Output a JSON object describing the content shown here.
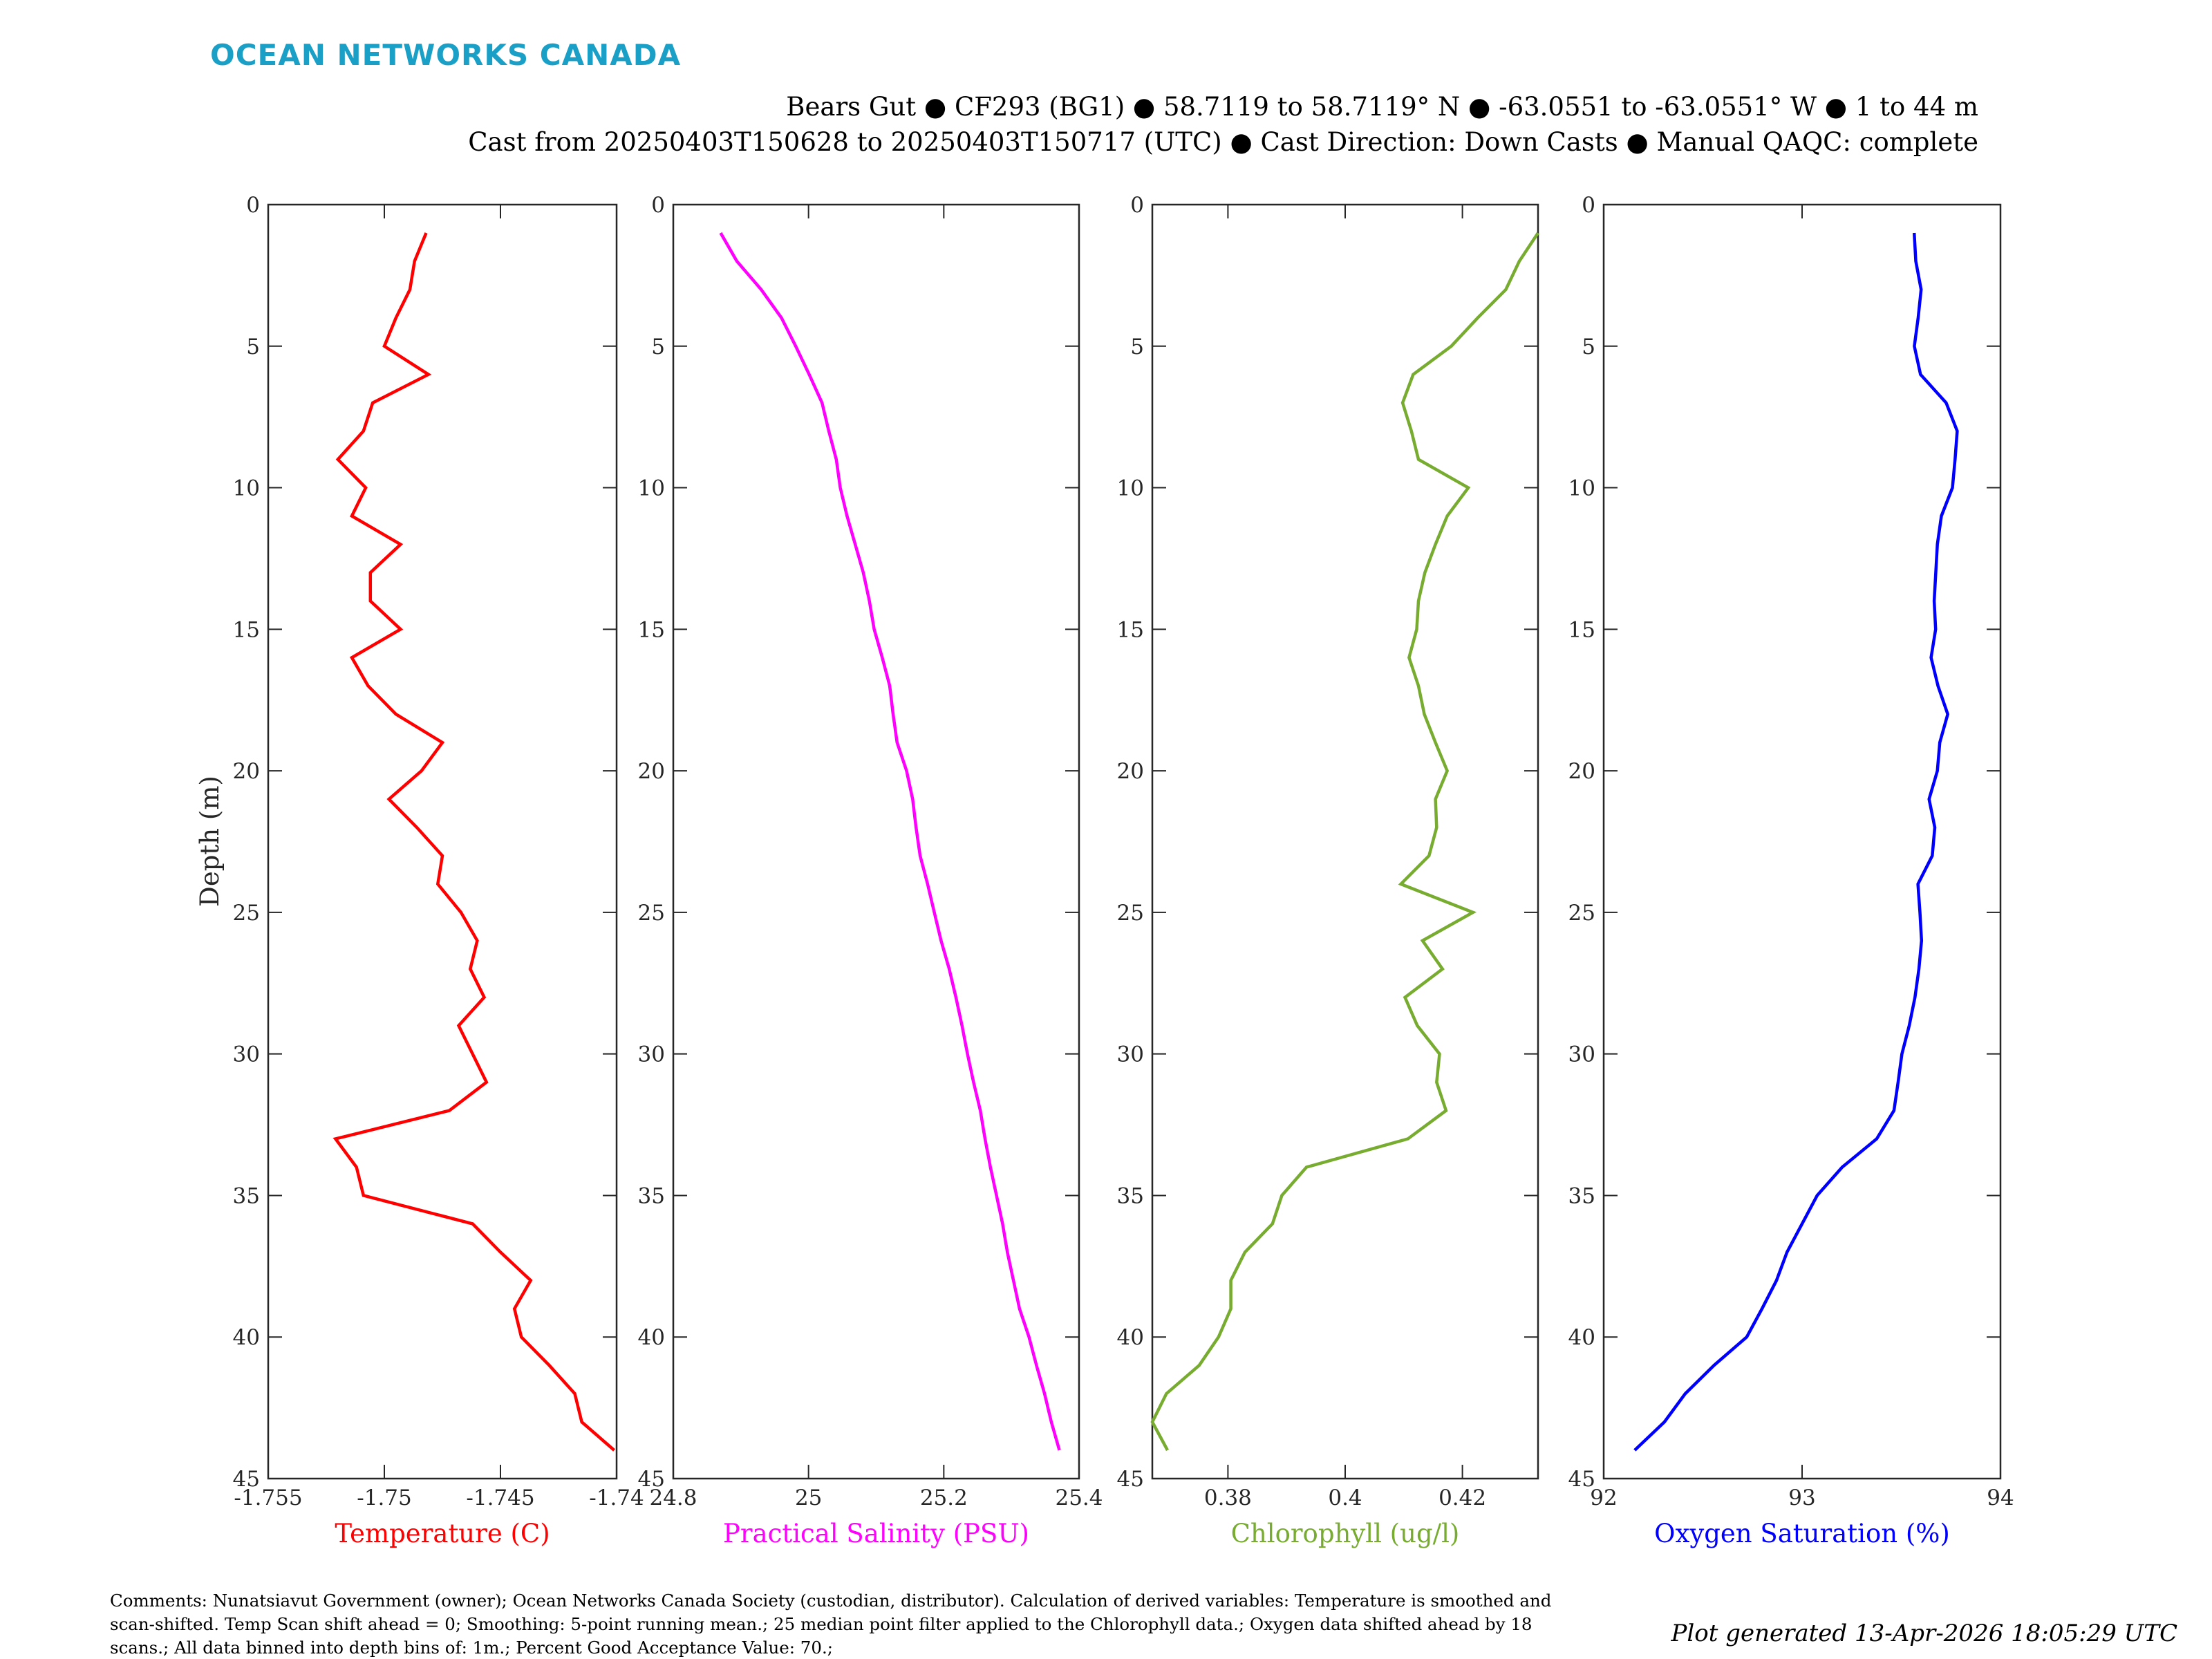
{
  "logo": {
    "text": "OCEAN NETWORKS CANADA",
    "color": "#1a9fc6"
  },
  "header": {
    "line1": "Bears Gut ● CF293 (BG1) ● 58.7119 to 58.7119° N ● -63.0551 to -63.0551° W ● 1 to 44 m",
    "line2": "Cast from 20250403T150628 to 20250403T150717 (UTC) ● Cast Direction: Down Casts ● Manual QAQC: complete"
  },
  "footer": {
    "comments": [
      "Comments: Nunatsiavut Government (owner); Ocean Networks Canada Society (custodian, distributor). Calculation of derived variables: Temperature is smoothed and",
      "scan-shifted. Temp Scan shift ahead = 0; Smoothing: 5-point running mean.; 25 median point filter applied to the Chlorophyll data.; Oxygen data shifted ahead by 18",
      "scans.; All data binned into depth bins of: 1m.; Percent Good Acceptance Value: 70.;"
    ],
    "generated": "Plot generated 13-Apr-2026 18:05:29 UTC"
  },
  "depth_axis": {
    "label": "Depth (m)",
    "ylim": [
      0,
      45
    ],
    "reversed": true,
    "ticks": [
      "0",
      "5",
      "10",
      "15",
      "20",
      "25",
      "30",
      "35",
      "40",
      "45"
    ],
    "tick_values": [
      0,
      5,
      10,
      15,
      20,
      25,
      30,
      35,
      40,
      45
    ]
  },
  "chart_data": [
    {
      "type": "line",
      "xlabel": "Temperature (C)",
      "ylabel": "Depth (m)",
      "color": "#ff0000",
      "xlim": [
        -1.755,
        -1.74
      ],
      "xticks": [
        -1.755,
        -1.75,
        -1.745,
        -1.74
      ],
      "xtick_labels": [
        "-1.755",
        "-1.75",
        "-1.745",
        "-1.74"
      ],
      "grid": false,
      "y": [
        1,
        2,
        3,
        4,
        5,
        6,
        7,
        8,
        9,
        10,
        11,
        12,
        13,
        14,
        15,
        16,
        17,
        18,
        19,
        20,
        21,
        22,
        23,
        24,
        25,
        26,
        27,
        28,
        29,
        30,
        31,
        32,
        33,
        34,
        35,
        36,
        37,
        38,
        39,
        40,
        41,
        42,
        43,
        44
      ],
      "x": [
        -1.7482,
        -1.7487,
        -1.7489,
        -1.7495,
        -1.75,
        -1.7481,
        -1.7505,
        -1.7509,
        -1.752,
        -1.7508,
        -1.7514,
        -1.7493,
        -1.7506,
        -1.7506,
        -1.7493,
        -1.7514,
        -1.7507,
        -1.7495,
        -1.7475,
        -1.7484,
        -1.7498,
        -1.7486,
        -1.7475,
        -1.7477,
        -1.7467,
        -1.746,
        -1.7463,
        -1.7457,
        -1.7468,
        -1.7462,
        -1.7456,
        -1.7472,
        -1.7521,
        -1.7512,
        -1.7509,
        -1.7462,
        -1.745,
        -1.7437,
        -1.7444,
        -1.7441,
        -1.7429,
        -1.7418,
        -1.7415,
        -1.7401
      ]
    },
    {
      "type": "line",
      "xlabel": "Practical Salinity (PSU)",
      "ylabel": "Depth (m)",
      "color": "#ff00ff",
      "xlim": [
        24.8,
        25.4
      ],
      "xticks": [
        24.8,
        25,
        25.2,
        25.4
      ],
      "xtick_labels": [
        "24.8",
        "25",
        "25.2",
        "25.4"
      ],
      "grid": false,
      "y": [
        1,
        2,
        3,
        4,
        5,
        6,
        7,
        8,
        9,
        10,
        11,
        12,
        13,
        14,
        15,
        16,
        17,
        18,
        19,
        20,
        21,
        22,
        23,
        24,
        25,
        26,
        27,
        28,
        29,
        30,
        31,
        32,
        33,
        34,
        35,
        36,
        37,
        38,
        39,
        40,
        41,
        42,
        43,
        44
      ],
      "x": [
        24.87,
        24.894,
        24.93,
        24.96,
        24.981,
        25.001,
        25.02,
        25.03,
        25.041,
        25.047,
        25.057,
        25.069,
        25.081,
        25.09,
        25.097,
        25.109,
        25.12,
        25.125,
        25.131,
        25.145,
        25.154,
        25.159,
        25.165,
        25.176,
        25.186,
        25.196,
        25.208,
        25.218,
        25.227,
        25.235,
        25.244,
        25.254,
        25.261,
        25.269,
        25.278,
        25.287,
        25.294,
        25.303,
        25.312,
        25.326,
        25.337,
        25.349,
        25.359,
        25.371
      ]
    },
    {
      "type": "line",
      "xlabel": "Chlorophyll (ug/l)",
      "ylabel": "Depth (m)",
      "color": "#77ac30",
      "xlim": [
        0.3671,
        0.4329
      ],
      "xticks": [
        0.38,
        0.4,
        0.42
      ],
      "xtick_labels": [
        "0.38",
        "0.4",
        "0.42"
      ],
      "grid": false,
      "y": [
        1,
        2,
        3,
        4,
        5,
        6,
        7,
        8,
        9,
        10,
        11,
        12,
        13,
        14,
        15,
        16,
        17,
        18,
        19,
        20,
        21,
        22,
        23,
        24,
        25,
        26,
        27,
        28,
        29,
        30,
        31,
        32,
        33,
        34,
        35,
        36,
        37,
        38,
        39,
        40,
        41,
        42,
        43,
        44
      ],
      "x": [
        0.4329,
        0.4297,
        0.4274,
        0.4226,
        0.4181,
        0.4116,
        0.4098,
        0.4113,
        0.4125,
        0.421,
        0.4174,
        0.4154,
        0.4136,
        0.4125,
        0.4122,
        0.4109,
        0.4125,
        0.4135,
        0.4154,
        0.4174,
        0.4154,
        0.4156,
        0.4143,
        0.4095,
        0.4218,
        0.4132,
        0.4166,
        0.4102,
        0.4123,
        0.4161,
        0.4156,
        0.4172,
        0.4107,
        0.3934,
        0.3892,
        0.3876,
        0.3829,
        0.3805,
        0.3805,
        0.3784,
        0.3751,
        0.3695,
        0.3671,
        0.3697
      ]
    },
    {
      "type": "line",
      "xlabel": "Oxygen Saturation (%)",
      "ylabel": "Depth (m)",
      "color": "#0000ff",
      "xlim": [
        92,
        94
      ],
      "xticks": [
        92,
        93,
        94
      ],
      "xtick_labels": [
        "92",
        "93",
        "94"
      ],
      "grid": false,
      "y": [
        1,
        2,
        3,
        4,
        5,
        6,
        7,
        8,
        9,
        10,
        11,
        12,
        13,
        14,
        15,
        16,
        17,
        18,
        19,
        20,
        21,
        22,
        23,
        24,
        25,
        26,
        27,
        28,
        29,
        30,
        31,
        32,
        33,
        34,
        35,
        36,
        37,
        38,
        39,
        40,
        41,
        42,
        43,
        44
      ],
      "x": [
        93.565,
        93.573,
        93.6,
        93.585,
        93.566,
        93.597,
        93.726,
        93.782,
        93.771,
        93.758,
        93.702,
        93.682,
        93.674,
        93.666,
        93.673,
        93.65,
        93.685,
        93.734,
        93.694,
        93.682,
        93.64,
        93.669,
        93.656,
        93.584,
        93.594,
        93.602,
        93.589,
        93.569,
        93.54,
        93.503,
        93.484,
        93.463,
        93.376,
        93.202,
        93.076,
        93.0,
        92.924,
        92.871,
        92.798,
        92.721,
        92.556,
        92.411,
        92.306,
        92.156
      ]
    }
  ]
}
